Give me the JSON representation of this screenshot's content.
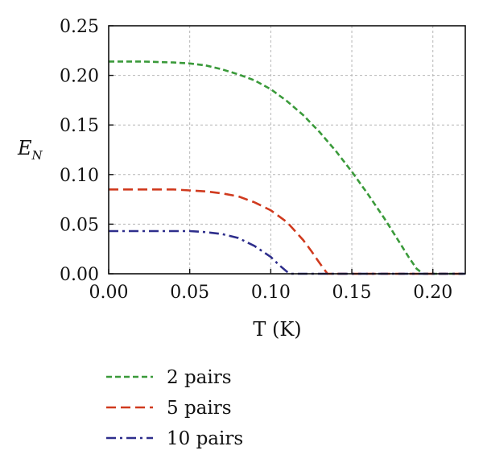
{
  "chart_data": {
    "type": "line",
    "xlabel": "T (K)",
    "ylabel": "E",
    "ylabel_subscript": "N",
    "xlim": [
      0.0,
      0.22
    ],
    "ylim": [
      0.0,
      0.25
    ],
    "xticks": [
      "0.00",
      "0.05",
      "0.10",
      "0.15",
      "0.20"
    ],
    "xtick_values": [
      0.0,
      0.05,
      0.1,
      0.15,
      0.2
    ],
    "yticks": [
      "0.00",
      "0.05",
      "0.10",
      "0.15",
      "0.20",
      "0.25"
    ],
    "ytick_values": [
      0.0,
      0.05,
      0.1,
      0.15,
      0.2,
      0.25
    ],
    "grid": true,
    "legend_position": "below",
    "series": [
      {
        "name": "2 pairs",
        "color": "#3a9a3a",
        "dash": "dashed-short",
        "x": [
          0.0,
          0.02,
          0.04,
          0.05,
          0.06,
          0.07,
          0.08,
          0.09,
          0.1,
          0.11,
          0.12,
          0.13,
          0.14,
          0.15,
          0.16,
          0.17,
          0.18,
          0.185,
          0.19,
          0.194,
          0.2,
          0.21,
          0.22
        ],
        "values": [
          0.214,
          0.214,
          0.213,
          0.212,
          0.21,
          0.206,
          0.201,
          0.195,
          0.186,
          0.174,
          0.16,
          0.143,
          0.124,
          0.103,
          0.08,
          0.056,
          0.03,
          0.017,
          0.005,
          0.0,
          0.0,
          0.0,
          0.0
        ]
      },
      {
        "name": "5 pairs",
        "color": "#d03a1e",
        "dash": "dashed-long",
        "x": [
          0.0,
          0.02,
          0.04,
          0.05,
          0.06,
          0.07,
          0.08,
          0.09,
          0.1,
          0.11,
          0.12,
          0.125,
          0.13,
          0.135,
          0.14,
          0.16,
          0.18,
          0.2,
          0.22
        ],
        "values": [
          0.085,
          0.085,
          0.085,
          0.084,
          0.083,
          0.081,
          0.078,
          0.072,
          0.064,
          0.052,
          0.034,
          0.023,
          0.011,
          0.0,
          0.0,
          0.0,
          0.0,
          0.0,
          0.0
        ]
      },
      {
        "name": "10 pairs",
        "color": "#2e2e8c",
        "dash": "dash-dot",
        "x": [
          0.0,
          0.02,
          0.04,
          0.05,
          0.06,
          0.07,
          0.08,
          0.09,
          0.1,
          0.105,
          0.11,
          0.112,
          0.13,
          0.16,
          0.19,
          0.22
        ],
        "values": [
          0.043,
          0.043,
          0.043,
          0.043,
          0.042,
          0.04,
          0.036,
          0.028,
          0.017,
          0.009,
          0.002,
          0.0,
          0.0,
          0.0,
          0.0,
          0.0
        ]
      }
    ]
  }
}
